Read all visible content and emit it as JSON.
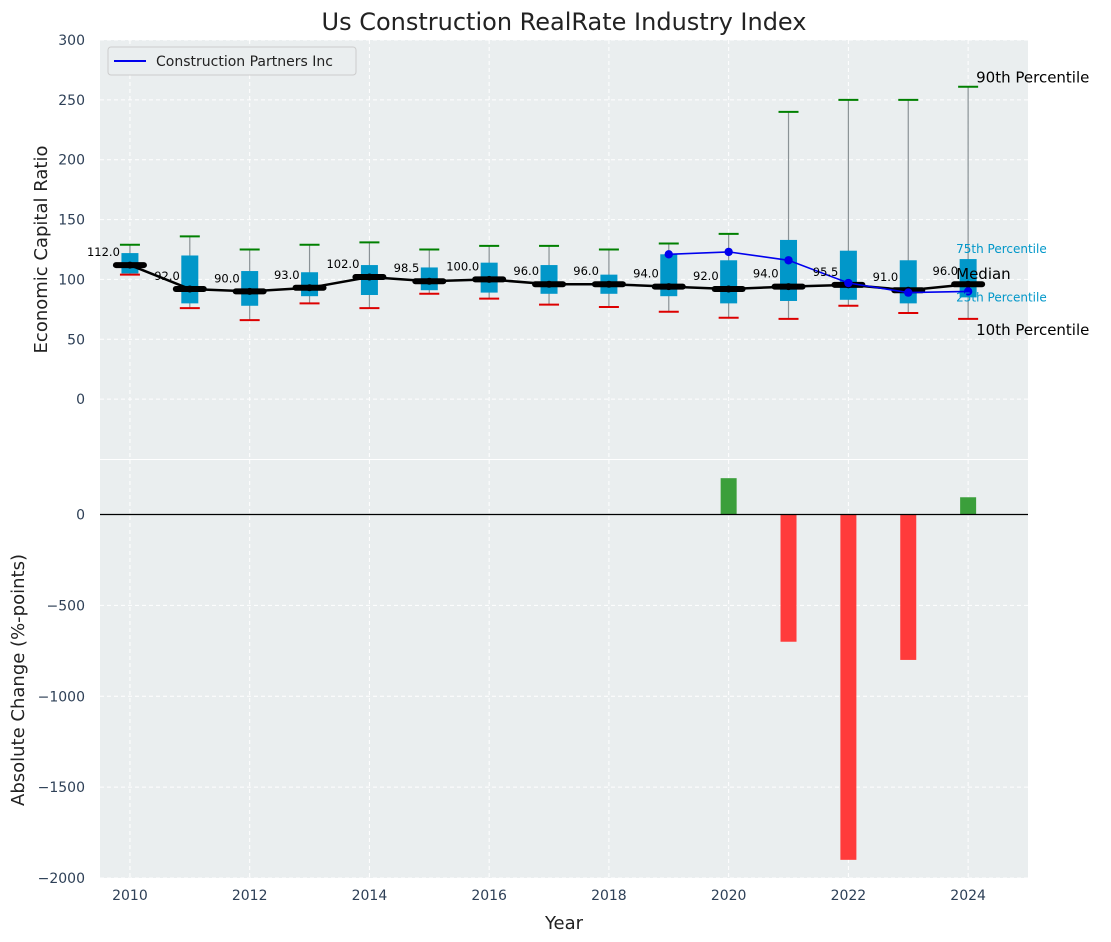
{
  "chart_data": [
    {
      "type": "box",
      "title": "Us Construction RealRate Industry Index",
      "ylabel": "Economic Capital Ratio",
      "ylim": [
        -50,
        300
      ],
      "yticks": [
        0,
        50,
        100,
        150,
        200,
        250,
        300
      ],
      "grid": true,
      "legend_position": "top-left",
      "years": [
        2010,
        2011,
        2012,
        2013,
        2014,
        2015,
        2016,
        2017,
        2018,
        2019,
        2020,
        2021,
        2022,
        2023,
        2024
      ],
      "p10": [
        104,
        76,
        66,
        80,
        76,
        88,
        84,
        79,
        77,
        73,
        68,
        67,
        78,
        72,
        67
      ],
      "p25": [
        105,
        80,
        78,
        86,
        87,
        91,
        89,
        88,
        88,
        86,
        80,
        82,
        83,
        80,
        85
      ],
      "median": [
        112,
        92,
        90,
        93,
        102,
        98.5,
        100,
        96,
        96,
        94,
        92,
        94,
        95.5,
        91,
        96
      ],
      "median_labels": [
        "112.0",
        "92.0",
        "90.0",
        "93.0",
        "102.0",
        "98.5",
        "100.0",
        "96.0",
        "96.0",
        "94.0",
        "92.0",
        "94.0",
        "95.5",
        "91.0",
        "96.0"
      ],
      "p75": [
        122,
        120,
        107,
        106,
        112,
        110,
        114,
        112,
        104,
        121,
        116,
        133,
        124,
        116,
        117
      ],
      "p90": [
        129,
        136,
        125,
        129,
        131,
        125,
        128,
        128,
        125,
        130,
        138,
        240,
        250,
        250,
        261
      ],
      "series": [
        {
          "name": "Construction Partners Inc",
          "x": [
            2019,
            2020,
            2021,
            2022,
            2023,
            2024
          ],
          "values": [
            121,
            123,
            116,
            97,
            89,
            90
          ]
        }
      ],
      "percentile_labels": {
        "p90": "90th Percentile",
        "p75": "75th Percentile",
        "median": "Median",
        "p25": "25th Percentile",
        "p10": "10th Percentile"
      },
      "colors": {
        "box": "#0197c9",
        "median_line": "#000000",
        "company_line": "#0000ee",
        "whisker_top": "#008000",
        "whisker_bottom": "#dd0000",
        "plot_bg": "#eaeeef",
        "positive_bar": "#3b9f3b",
        "negative_bar": "#ff3b3b",
        "text": "#222222",
        "tick_text": "#2e4057"
      }
    },
    {
      "type": "bar",
      "ylabel": "Absolute Change (%-points)",
      "xlabel": "Year",
      "ylim": [
        -2000,
        300
      ],
      "yticks": [
        -2000,
        -1500,
        -1000,
        -500,
        0
      ],
      "xticks": [
        2010,
        2012,
        2014,
        2016,
        2018,
        2020,
        2022,
        2024
      ],
      "grid": true,
      "x": [
        2020,
        2021,
        2022,
        2023,
        2024
      ],
      "values": [
        200,
        -700,
        -1900,
        -800,
        95
      ]
    }
  ]
}
